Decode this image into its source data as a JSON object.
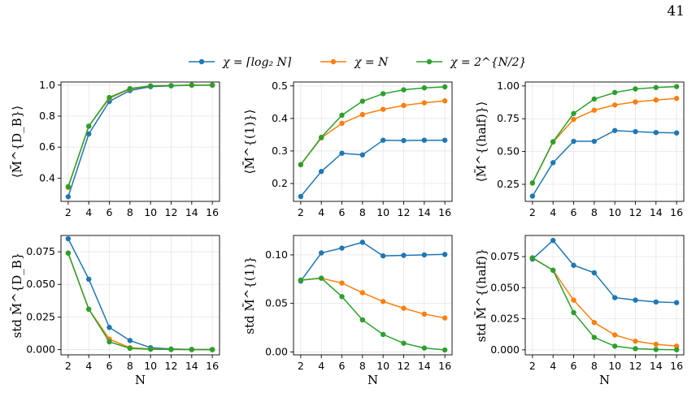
{
  "page_number": "41",
  "legend": [
    {
      "label": "χ = ⌈log₂ N⌉",
      "color": "#1f77b4"
    },
    {
      "label": "χ = N",
      "color": "#ff7f0e"
    },
    {
      "label": "χ = 2^{N/2}",
      "color": "#2ca02c"
    }
  ],
  "chart_data": [
    {
      "type": "line",
      "ylabel": "⟨M̄^{D_B}⟩",
      "xlabel": "",
      "x": [
        2,
        4,
        6,
        8,
        10,
        12,
        14,
        16
      ],
      "xticks": [
        "2",
        "4",
        "6",
        "8",
        "10",
        "12",
        "14",
        "16"
      ],
      "ylim": [
        0.25,
        1.02
      ],
      "yticks": [
        0.4,
        0.6,
        0.8,
        1.0
      ],
      "ytick_labels": [
        "0.4",
        "0.6",
        "0.8",
        "1.0"
      ],
      "grid": true,
      "series": [
        {
          "name": "χ = ⌈log₂ N⌉",
          "values": [
            0.28,
            0.685,
            0.895,
            0.965,
            0.99,
            0.995,
            1.0,
            1.0
          ]
        },
        {
          "name": "χ = N",
          "values": [
            0.34,
            0.735,
            0.915,
            0.975,
            0.995,
            0.997,
            1.0,
            1.0
          ]
        },
        {
          "name": "χ = 2^{N/2}",
          "values": [
            0.345,
            0.735,
            0.92,
            0.978,
            0.995,
            0.997,
            1.0,
            1.0
          ]
        }
      ]
    },
    {
      "type": "line",
      "ylabel": "⟨M̄^{(1)}⟩",
      "xlabel": "",
      "x": [
        2,
        4,
        6,
        8,
        10,
        12,
        14,
        16
      ],
      "xticks": [
        "2",
        "4",
        "6",
        "8",
        "10",
        "12",
        "14",
        "16"
      ],
      "ylim": [
        0.145,
        0.512
      ],
      "yticks": [
        0.2,
        0.3,
        0.4,
        0.5
      ],
      "ytick_labels": [
        "0.2",
        "0.3",
        "0.4",
        "0.5"
      ],
      "grid": true,
      "series": [
        {
          "name": "χ = ⌈log₂ N⌉",
          "values": [
            0.16,
            0.237,
            0.293,
            0.288,
            0.333,
            0.332,
            0.333,
            0.333
          ]
        },
        {
          "name": "χ = N",
          "values": [
            0.258,
            0.34,
            0.385,
            0.412,
            0.428,
            0.44,
            0.448,
            0.454
          ]
        },
        {
          "name": "χ = 2^{N/2}",
          "values": [
            0.258,
            0.342,
            0.41,
            0.453,
            0.476,
            0.488,
            0.494,
            0.497
          ]
        }
      ]
    },
    {
      "type": "line",
      "ylabel": "⟨M̄^{(half)}⟩",
      "xlabel": "",
      "x": [
        2,
        4,
        6,
        8,
        10,
        12,
        14,
        16
      ],
      "xticks": [
        "2",
        "4",
        "6",
        "8",
        "10",
        "12",
        "14",
        "16"
      ],
      "ylim": [
        0.12,
        1.03
      ],
      "yticks": [
        0.25,
        0.5,
        0.75,
        1.0
      ],
      "ytick_labels": [
        "0.25",
        "0.50",
        "0.75",
        "1.00"
      ],
      "grid": true,
      "series": [
        {
          "name": "χ = ⌈log₂ N⌉",
          "values": [
            0.16,
            0.415,
            0.578,
            0.578,
            0.66,
            0.652,
            0.645,
            0.642
          ]
        },
        {
          "name": "χ = N",
          "values": [
            0.26,
            0.572,
            0.745,
            0.815,
            0.855,
            0.878,
            0.893,
            0.905
          ]
        },
        {
          "name": "χ = 2^{N/2}",
          "values": [
            0.26,
            0.575,
            0.79,
            0.9,
            0.95,
            0.977,
            0.988,
            0.995
          ]
        }
      ]
    },
    {
      "type": "line",
      "ylabel": "std M̄^{D_B}",
      "xlabel": "N",
      "x": [
        2,
        4,
        6,
        8,
        10,
        12,
        14,
        16
      ],
      "xticks": [
        "2",
        "4",
        "6",
        "8",
        "10",
        "12",
        "14",
        "16"
      ],
      "ylim": [
        -0.004,
        0.0875
      ],
      "yticks": [
        0.0,
        0.025,
        0.05,
        0.075
      ],
      "ytick_labels": [
        "0.000",
        "0.025",
        "0.050",
        "0.075"
      ],
      "grid": true,
      "series": [
        {
          "name": "χ = ⌈log₂ N⌉",
          "values": [
            0.085,
            0.054,
            0.017,
            0.007,
            0.0015,
            0.0005,
            0.0002,
            0.0001
          ]
        },
        {
          "name": "χ = N",
          "values": [
            0.074,
            0.031,
            0.008,
            0.0015,
            0.0005,
            0.0002,
            0.0001,
            0.0
          ]
        },
        {
          "name": "χ = 2^{N/2}",
          "values": [
            0.074,
            0.031,
            0.006,
            0.001,
            0.0003,
            0.0001,
            0.0,
            0.0
          ]
        }
      ]
    },
    {
      "type": "line",
      "ylabel": "std M̄^{(1)}",
      "xlabel": "N",
      "x": [
        2,
        4,
        6,
        8,
        10,
        12,
        14,
        16
      ],
      "xticks": [
        "2",
        "4",
        "6",
        "8",
        "10",
        "12",
        "14",
        "16"
      ],
      "ylim": [
        -0.003,
        0.12
      ],
      "yticks": [
        0.0,
        0.05,
        0.1
      ],
      "ytick_labels": [
        "0.00",
        "0.05",
        "0.10"
      ],
      "grid": true,
      "series": [
        {
          "name": "χ = ⌈log₂ N⌉",
          "values": [
            0.073,
            0.102,
            0.107,
            0.113,
            0.099,
            0.0995,
            0.1,
            0.1005
          ]
        },
        {
          "name": "χ = N",
          "values": [
            0.074,
            0.076,
            0.071,
            0.061,
            0.052,
            0.045,
            0.039,
            0.035
          ]
        },
        {
          "name": "χ = 2^{N/2}",
          "values": [
            0.074,
            0.076,
            0.057,
            0.033,
            0.018,
            0.009,
            0.004,
            0.002
          ]
        }
      ]
    },
    {
      "type": "line",
      "ylabel": "std M̄^{(half)}",
      "xlabel": "N",
      "x": [
        2,
        4,
        6,
        8,
        10,
        12,
        14,
        16
      ],
      "xticks": [
        "2",
        "4",
        "6",
        "8",
        "10",
        "12",
        "14",
        "16"
      ],
      "ylim": [
        -0.004,
        0.092
      ],
      "yticks": [
        0.0,
        0.025,
        0.05,
        0.075
      ],
      "ytick_labels": [
        "0.000",
        "0.025",
        "0.050",
        "0.075"
      ],
      "grid": true,
      "series": [
        {
          "name": "χ = ⌈log₂ N⌉",
          "values": [
            0.073,
            0.088,
            0.068,
            0.062,
            0.042,
            0.04,
            0.0385,
            0.038
          ]
        },
        {
          "name": "χ = N",
          "values": [
            0.074,
            0.064,
            0.04,
            0.022,
            0.012,
            0.007,
            0.0045,
            0.003
          ]
        },
        {
          "name": "χ = 2^{N/2}",
          "values": [
            0.074,
            0.064,
            0.03,
            0.01,
            0.003,
            0.001,
            0.0003,
            0.0001
          ]
        }
      ]
    }
  ]
}
